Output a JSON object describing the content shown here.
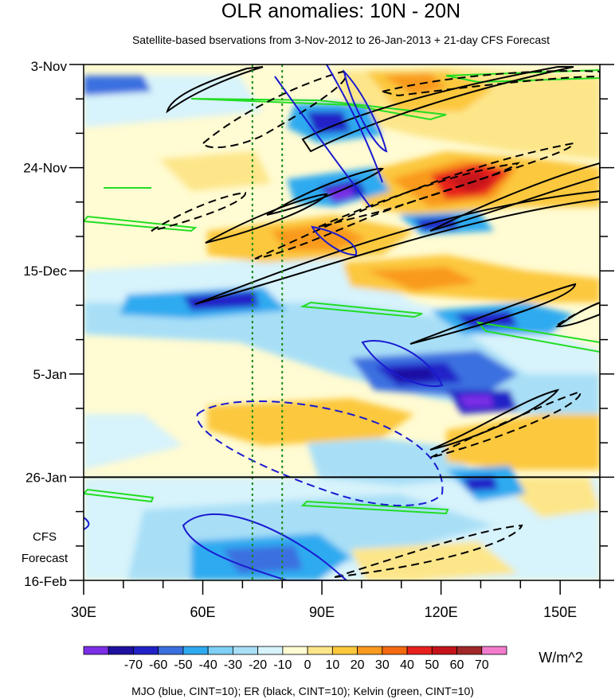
{
  "chart_data": {
    "type": "heatmap",
    "title": "OLR anomalies: 10N - 20N",
    "subtitle": "Satellite-based bservations from 3-Nov-2012 to 26-Jan-2013 + 21-day CFS Forecast",
    "x_ticks": [
      {
        "value": 30,
        "label": "30E"
      },
      {
        "value": 60,
        "label": "60E"
      },
      {
        "value": 90,
        "label": "90E"
      },
      {
        "value": 120,
        "label": "120E"
      },
      {
        "value": 150,
        "label": "150E"
      }
    ],
    "xlim": [
      30,
      160
    ],
    "y_ticks": [
      {
        "day": 0,
        "label": "3-Nov"
      },
      {
        "day": 21,
        "label": "24-Nov"
      },
      {
        "day": 42,
        "label": "15-Dec"
      },
      {
        "day": 63,
        "label": "5-Jan"
      },
      {
        "day": 84,
        "label": "26-Jan"
      },
      {
        "day": 105,
        "label": "16-Feb"
      }
    ],
    "ylim_days": [
      0,
      105
    ],
    "forecast_start_day": 84,
    "forecast_label": [
      "CFS",
      "Forecast"
    ],
    "reference_lon": [
      72.5,
      80
    ],
    "colorbar": {
      "labels": [
        "-70",
        "-60",
        "-50",
        "-40",
        "-30",
        "-20",
        "-10",
        "0",
        "10",
        "20",
        "30",
        "40",
        "50",
        "60",
        "70"
      ],
      "colors": [
        "#7b2ee6",
        "#1e10a0",
        "#2121c8",
        "#3a6fe0",
        "#2eaaf0",
        "#7ed0f7",
        "#a8dff7",
        "#d7f3fb",
        "#fffbd2",
        "#fde68a",
        "#fcc83c",
        "#f99a1f",
        "#f36a10",
        "#e8201c",
        "#c4141a",
        "#a02828",
        "#f27ccc"
      ],
      "unit": "W/m^2"
    },
    "legend_note": "MJO (blue, CINT=10); ER (black, CINT=10); Kelvin (green, CINT=10)"
  }
}
